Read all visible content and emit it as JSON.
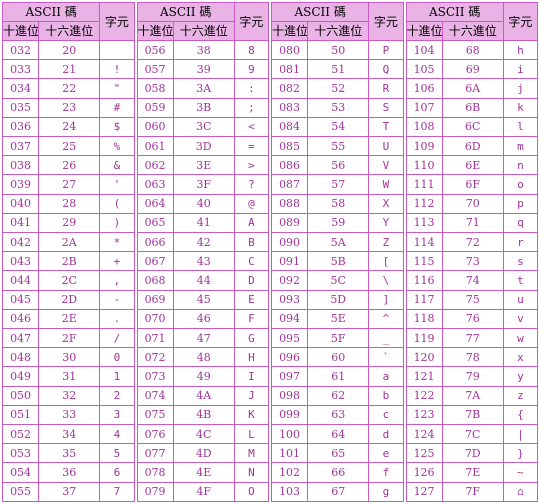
{
  "table_header": {
    "title": "ASCII 碼",
    "decimal_label": "十進位",
    "hex_label": "十六進位",
    "char_label": "字元"
  },
  "tables": [
    {
      "rows": [
        {
          "dec": "032",
          "hex": "20",
          "char": ""
        },
        {
          "dec": "033",
          "hex": "21",
          "char": "!"
        },
        {
          "dec": "034",
          "hex": "22",
          "char": "\""
        },
        {
          "dec": "035",
          "hex": "23",
          "char": "#"
        },
        {
          "dec": "036",
          "hex": "24",
          "char": "$"
        },
        {
          "dec": "037",
          "hex": "25",
          "char": "%"
        },
        {
          "dec": "038",
          "hex": "26",
          "char": "&"
        },
        {
          "dec": "039",
          "hex": "27",
          "char": "'"
        },
        {
          "dec": "040",
          "hex": "28",
          "char": "("
        },
        {
          "dec": "041",
          "hex": "29",
          "char": ")"
        },
        {
          "dec": "042",
          "hex": "2A",
          "char": "*"
        },
        {
          "dec": "043",
          "hex": "2B",
          "char": "+"
        },
        {
          "dec": "044",
          "hex": "2C",
          "char": ","
        },
        {
          "dec": "045",
          "hex": "2D",
          "char": "-"
        },
        {
          "dec": "046",
          "hex": "2E",
          "char": "."
        },
        {
          "dec": "047",
          "hex": "2F",
          "char": "/"
        },
        {
          "dec": "048",
          "hex": "30",
          "char": "0"
        },
        {
          "dec": "049",
          "hex": "31",
          "char": "1"
        },
        {
          "dec": "050",
          "hex": "32",
          "char": "2"
        },
        {
          "dec": "051",
          "hex": "33",
          "char": "3"
        },
        {
          "dec": "052",
          "hex": "34",
          "char": "4"
        },
        {
          "dec": "053",
          "hex": "35",
          "char": "5"
        },
        {
          "dec": "054",
          "hex": "36",
          "char": "6"
        },
        {
          "dec": "055",
          "hex": "37",
          "char": "7"
        }
      ]
    },
    {
      "rows": [
        {
          "dec": "056",
          "hex": "38",
          "char": "8"
        },
        {
          "dec": "057",
          "hex": "39",
          "char": "9"
        },
        {
          "dec": "058",
          "hex": "3A",
          "char": ":"
        },
        {
          "dec": "059",
          "hex": "3B",
          "char": ";"
        },
        {
          "dec": "060",
          "hex": "3C",
          "char": "<"
        },
        {
          "dec": "061",
          "hex": "3D",
          "char": "="
        },
        {
          "dec": "062",
          "hex": "3E",
          "char": ">"
        },
        {
          "dec": "063",
          "hex": "3F",
          "char": "?"
        },
        {
          "dec": "064",
          "hex": "40",
          "char": "@"
        },
        {
          "dec": "065",
          "hex": "41",
          "char": "A"
        },
        {
          "dec": "066",
          "hex": "42",
          "char": "B"
        },
        {
          "dec": "067",
          "hex": "43",
          "char": "C"
        },
        {
          "dec": "068",
          "hex": "44",
          "char": "D"
        },
        {
          "dec": "069",
          "hex": "45",
          "char": "E"
        },
        {
          "dec": "070",
          "hex": "46",
          "char": "F"
        },
        {
          "dec": "071",
          "hex": "47",
          "char": "G"
        },
        {
          "dec": "072",
          "hex": "48",
          "char": "H"
        },
        {
          "dec": "073",
          "hex": "49",
          "char": "I"
        },
        {
          "dec": "074",
          "hex": "4A",
          "char": "J"
        },
        {
          "dec": "075",
          "hex": "4B",
          "char": "K"
        },
        {
          "dec": "076",
          "hex": "4C",
          "char": "L"
        },
        {
          "dec": "077",
          "hex": "4D",
          "char": "M"
        },
        {
          "dec": "078",
          "hex": "4E",
          "char": "N"
        },
        {
          "dec": "079",
          "hex": "4F",
          "char": "O"
        }
      ]
    },
    {
      "rows": [
        {
          "dec": "080",
          "hex": "50",
          "char": "P"
        },
        {
          "dec": "081",
          "hex": "51",
          "char": "Q"
        },
        {
          "dec": "082",
          "hex": "52",
          "char": "R"
        },
        {
          "dec": "083",
          "hex": "53",
          "char": "S"
        },
        {
          "dec": "084",
          "hex": "54",
          "char": "T"
        },
        {
          "dec": "085",
          "hex": "55",
          "char": "U"
        },
        {
          "dec": "086",
          "hex": "56",
          "char": "V"
        },
        {
          "dec": "087",
          "hex": "57",
          "char": "W"
        },
        {
          "dec": "088",
          "hex": "58",
          "char": "X"
        },
        {
          "dec": "089",
          "hex": "59",
          "char": "Y"
        },
        {
          "dec": "090",
          "hex": "5A",
          "char": "Z"
        },
        {
          "dec": "091",
          "hex": "5B",
          "char": "["
        },
        {
          "dec": "092",
          "hex": "5C",
          "char": "\\"
        },
        {
          "dec": "093",
          "hex": "5D",
          "char": "]"
        },
        {
          "dec": "094",
          "hex": "5E",
          "char": "^"
        },
        {
          "dec": "095",
          "hex": "5F",
          "char": "_"
        },
        {
          "dec": "096",
          "hex": "60",
          "char": "`"
        },
        {
          "dec": "097",
          "hex": "61",
          "char": "a"
        },
        {
          "dec": "098",
          "hex": "62",
          "char": "b"
        },
        {
          "dec": "099",
          "hex": "63",
          "char": "c"
        },
        {
          "dec": "100",
          "hex": "64",
          "char": "d"
        },
        {
          "dec": "101",
          "hex": "65",
          "char": "e"
        },
        {
          "dec": "102",
          "hex": "66",
          "char": "f"
        },
        {
          "dec": "103",
          "hex": "67",
          "char": "g"
        }
      ]
    },
    {
      "rows": [
        {
          "dec": "104",
          "hex": "68",
          "char": "h"
        },
        {
          "dec": "105",
          "hex": "69",
          "char": "i"
        },
        {
          "dec": "106",
          "hex": "6A",
          "char": "j"
        },
        {
          "dec": "107",
          "hex": "6B",
          "char": "k"
        },
        {
          "dec": "108",
          "hex": "6C",
          "char": "l"
        },
        {
          "dec": "109",
          "hex": "6D",
          "char": "m"
        },
        {
          "dec": "110",
          "hex": "6E",
          "char": "n"
        },
        {
          "dec": "111",
          "hex": "6F",
          "char": "o"
        },
        {
          "dec": "112",
          "hex": "70",
          "char": "p"
        },
        {
          "dec": "113",
          "hex": "71",
          "char": "q"
        },
        {
          "dec": "114",
          "hex": "72",
          "char": "r"
        },
        {
          "dec": "115",
          "hex": "73",
          "char": "s"
        },
        {
          "dec": "116",
          "hex": "74",
          "char": "t"
        },
        {
          "dec": "117",
          "hex": "75",
          "char": "u"
        },
        {
          "dec": "118",
          "hex": "76",
          "char": "v"
        },
        {
          "dec": "119",
          "hex": "77",
          "char": "w"
        },
        {
          "dec": "120",
          "hex": "78",
          "char": "x"
        },
        {
          "dec": "121",
          "hex": "79",
          "char": "y"
        },
        {
          "dec": "122",
          "hex": "7A",
          "char": "z"
        },
        {
          "dec": "123",
          "hex": "7B",
          "char": "{"
        },
        {
          "dec": "124",
          "hex": "7C",
          "char": "|"
        },
        {
          "dec": "125",
          "hex": "7D",
          "char": "}"
        },
        {
          "dec": "126",
          "hex": "7E",
          "char": "~"
        },
        {
          "dec": "127",
          "hex": "7F",
          "char": "⌂"
        }
      ]
    }
  ]
}
